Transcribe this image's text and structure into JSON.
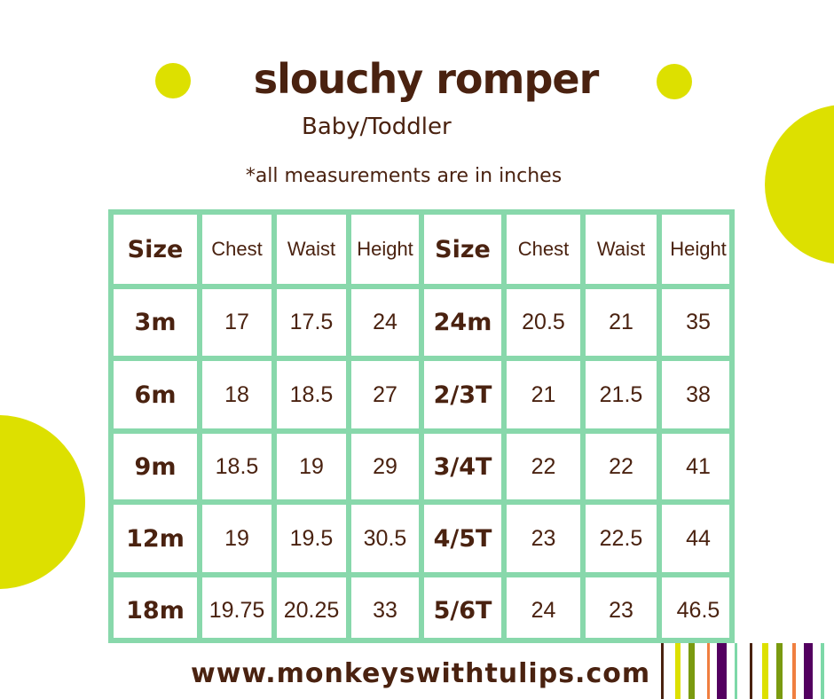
{
  "title": "slouchy romper",
  "subtitle": "Baby/Toddler",
  "note": "*all measurements are in inches",
  "headers": [
    "Size",
    "Chest",
    "Waist",
    "Height",
    "Size",
    "Chest",
    "Waist",
    "Height"
  ],
  "rows": [
    [
      "3m",
      "17",
      "17.5",
      "24",
      "24m",
      "20.5",
      "21",
      "35"
    ],
    [
      "6m",
      "18",
      "18.5",
      "27",
      "2/3T",
      "21",
      "21.5",
      "38"
    ],
    [
      "9m",
      "18.5",
      "19",
      "29",
      "3/4T",
      "22",
      "22",
      "41"
    ],
    [
      "12m",
      "19",
      "19.5",
      "30.5",
      "4/5T",
      "23",
      "22.5",
      "44"
    ],
    [
      "18m",
      "19.75",
      "20.25",
      "33",
      "5/6T",
      "24",
      "23",
      "46.5"
    ]
  ],
  "website": "www.monkeyswithtulips.com",
  "colors": {
    "accent": "#dde000",
    "grid": "#88d8ab",
    "text": "#4a2210",
    "stripes": [
      "#4a2210",
      "#dde000",
      "#7a9a10",
      "#f07f40",
      "#530060",
      "#7dd8a8"
    ]
  }
}
